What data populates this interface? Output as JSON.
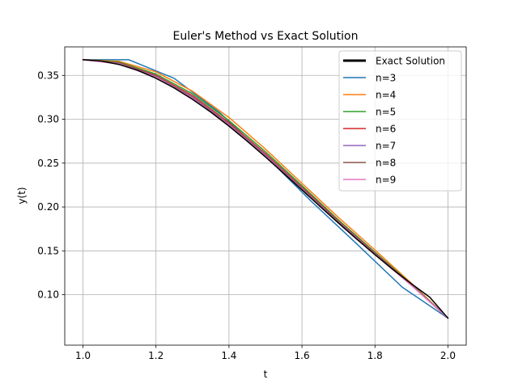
{
  "chart_data": {
    "type": "line",
    "title": "Euler's Method vs Exact Solution",
    "xlabel": "t",
    "ylabel": "y(t)",
    "xlim": [
      0.95,
      2.05
    ],
    "ylim": [
      0.0425,
      0.3825
    ],
    "xticks": [
      1.0,
      1.2,
      1.4,
      1.6,
      1.8,
      2.0
    ],
    "xtick_labels": [
      "1.0",
      "1.2",
      "1.4",
      "1.6",
      "1.8",
      "2.0"
    ],
    "yticks": [
      0.1,
      0.15,
      0.2,
      0.25,
      0.3,
      0.35
    ],
    "ytick_labels": [
      "0.10",
      "0.15",
      "0.20",
      "0.25",
      "0.30",
      "0.35"
    ],
    "grid": true,
    "legend_position": "top-right",
    "series": [
      {
        "name": "Exact Solution",
        "color": "#000000",
        "width": 3,
        "x": [
          1.0,
          1.05,
          1.1,
          1.15,
          1.2,
          1.25,
          1.3,
          1.35,
          1.4,
          1.45,
          1.5,
          1.55,
          1.6,
          1.65,
          1.7,
          1.75,
          1.8,
          1.85,
          1.9,
          1.95,
          2.0
        ],
        "y": [
          0.3679,
          0.3664,
          0.3623,
          0.3557,
          0.3467,
          0.3356,
          0.3227,
          0.3082,
          0.2922,
          0.275,
          0.257,
          0.2384,
          0.2195,
          0.2005,
          0.1817,
          0.1634,
          0.1456,
          0.1285,
          0.1124,
          0.0972,
          0.0733
        ]
      },
      {
        "name": "n=3",
        "color": "#1f77b4",
        "width": 1.5,
        "x": [
          1.0,
          1.125,
          1.25,
          1.375,
          1.5,
          1.625,
          1.75,
          1.875,
          2.0
        ],
        "y": [
          0.3679,
          0.3679,
          0.3466,
          0.3075,
          0.2583,
          0.2067,
          0.158,
          0.1085,
          0.0733
        ]
      },
      {
        "name": "n=4",
        "color": "#ff7f0e",
        "width": 1.5,
        "x": [
          1.0,
          1.1,
          1.2,
          1.3,
          1.4,
          1.5,
          1.6,
          1.7,
          1.8,
          1.9,
          2.0
        ],
        "y": [
          0.3679,
          0.366,
          0.354,
          0.332,
          0.302,
          0.266,
          0.227,
          0.188,
          0.151,
          0.113,
          0.0733
        ]
      },
      {
        "name": "n=5",
        "color": "#2ca02c",
        "width": 1.5,
        "x": [
          1.0,
          1.1,
          1.2,
          1.3,
          1.4,
          1.5,
          1.6,
          1.7,
          1.8,
          1.9,
          2.0
        ],
        "y": [
          0.3679,
          0.365,
          0.3515,
          0.329,
          0.2985,
          0.263,
          0.2243,
          0.1852,
          0.1485,
          0.112,
          0.0733
        ]
      },
      {
        "name": "n=6",
        "color": "#d62728",
        "width": 1.5,
        "x": [
          1.0,
          1.1,
          1.2,
          1.3,
          1.4,
          1.5,
          1.6,
          1.7,
          1.8,
          1.9,
          2.0
        ],
        "y": [
          0.3679,
          0.3642,
          0.35,
          0.327,
          0.2962,
          0.2608,
          0.2225,
          0.1838,
          0.1474,
          0.1113,
          0.0733
        ]
      },
      {
        "name": "n=7",
        "color": "#9467bd",
        "width": 1.5,
        "x": [
          1.0,
          1.1,
          1.2,
          1.3,
          1.4,
          1.5,
          1.6,
          1.7,
          1.8,
          1.9,
          2.0
        ],
        "y": [
          0.3679,
          0.3637,
          0.349,
          0.3255,
          0.2947,
          0.2594,
          0.2213,
          0.1829,
          0.1467,
          0.111,
          0.0733
        ]
      },
      {
        "name": "n=8",
        "color": "#8c564b",
        "width": 1.5,
        "x": [
          1.0,
          1.1,
          1.2,
          1.3,
          1.4,
          1.5,
          1.6,
          1.7,
          1.8,
          1.9,
          2.0
        ],
        "y": [
          0.3679,
          0.3633,
          0.3482,
          0.3245,
          0.2937,
          0.2584,
          0.2205,
          0.1823,
          0.1462,
          0.1107,
          0.0733
        ]
      },
      {
        "name": "n=9",
        "color": "#e377c2",
        "width": 1.5,
        "x": [
          1.0,
          1.1,
          1.2,
          1.3,
          1.4,
          1.5,
          1.6,
          1.7,
          1.8,
          1.9,
          2.0
        ],
        "y": [
          0.3679,
          0.363,
          0.3477,
          0.3238,
          0.293,
          0.2577,
          0.2199,
          0.1818,
          0.1458,
          0.1105,
          0.0733
        ]
      }
    ]
  }
}
